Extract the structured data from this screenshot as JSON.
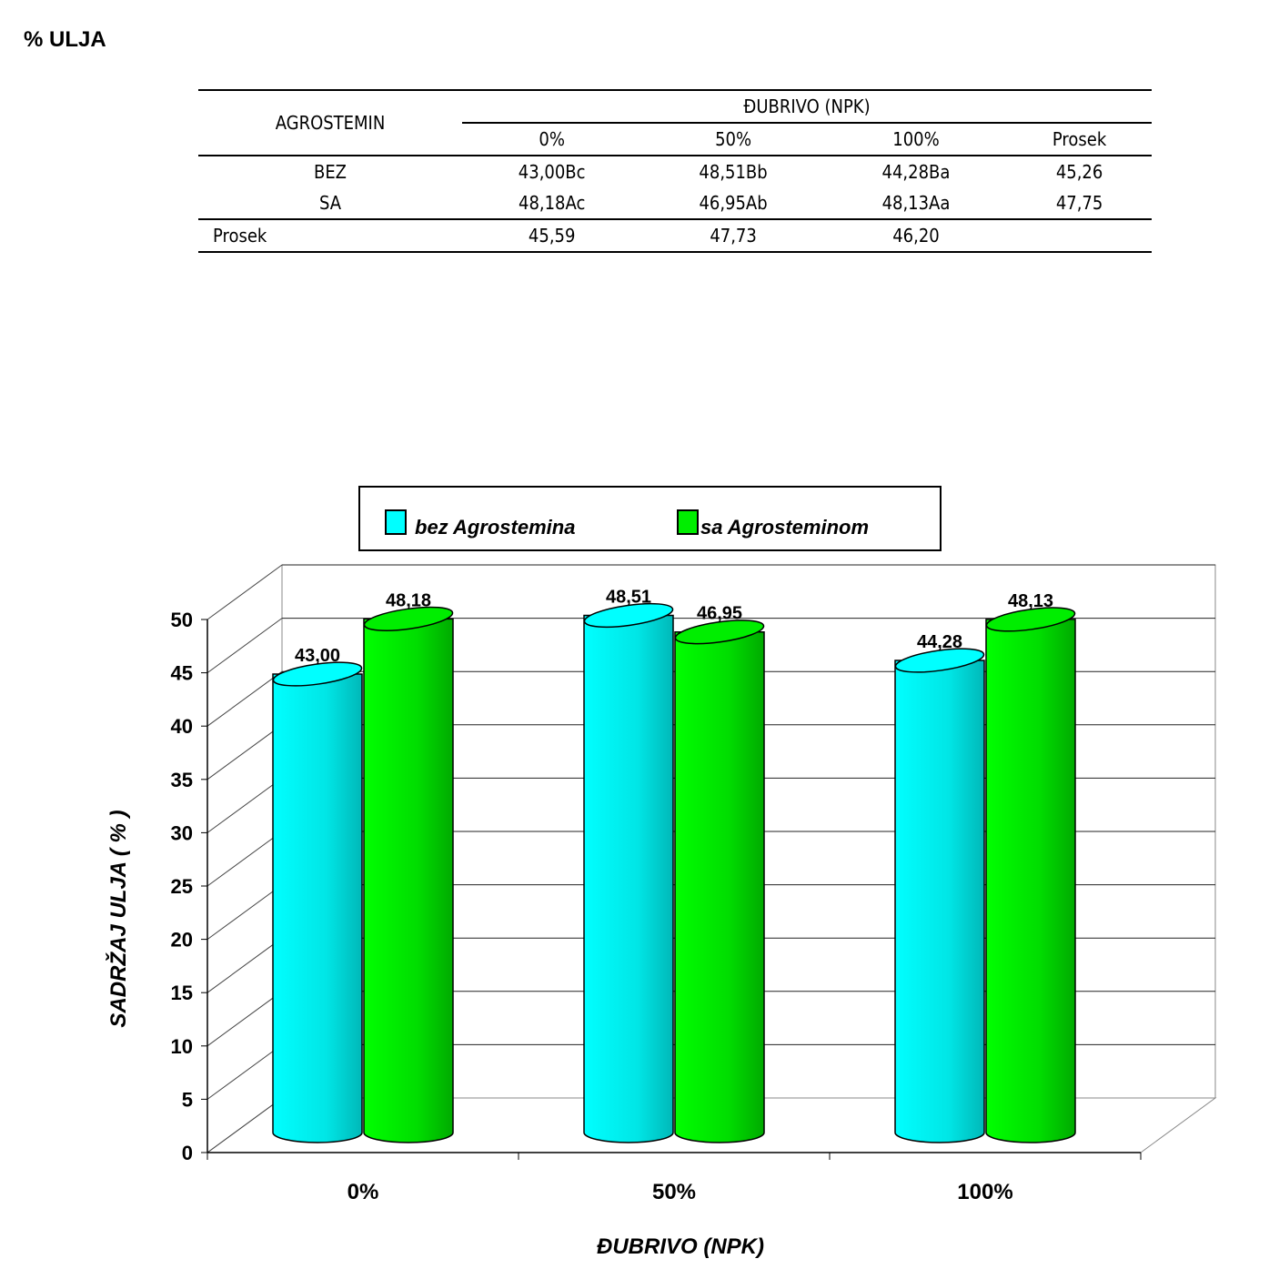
{
  "title": "% ULJA",
  "table": {
    "row_header": "AGROSTEMIN",
    "group_header": "ĐUBRIVO (NPK)",
    "columns": [
      "0%",
      "50%",
      "100%",
      "Prosek"
    ],
    "rows": [
      {
        "label": "BEZ",
        "cells": [
          "43,00Bc",
          "48,51Bb",
          "44,28Ba",
          "45,26"
        ]
      },
      {
        "label": "SA",
        "cells": [
          "48,18Ac",
          "46,95Ab",
          "48,13Aa",
          "47,75"
        ]
      }
    ],
    "footer": {
      "label": "Prosek",
      "cells": [
        "45,59",
        "47,73",
        "46,20"
      ]
    }
  },
  "chart_data": {
    "type": "bar",
    "style": "3d-cylinder",
    "categories": [
      "0%",
      "50%",
      "100%"
    ],
    "series": [
      {
        "name": "bez Agrostemina",
        "color": "#00ffff",
        "values": [
          43.0,
          48.51,
          44.28
        ],
        "labels": [
          "43,00",
          "48,51",
          "44,28"
        ]
      },
      {
        "name": "sa Agrosteminom",
        "color": "#00ee00",
        "values": [
          48.18,
          46.95,
          48.13
        ],
        "labels": [
          "48,18",
          "46,95",
          "48,13"
        ]
      }
    ],
    "xlabel": "ĐUBRIVO (NPK)",
    "ylabel": "SADRŽAJ ULJA  ( % )",
    "ylim": [
      0,
      50
    ],
    "yticks": [
      0,
      5,
      10,
      15,
      20,
      25,
      30,
      35,
      40,
      45,
      50
    ],
    "grid": true,
    "legend": "top"
  }
}
